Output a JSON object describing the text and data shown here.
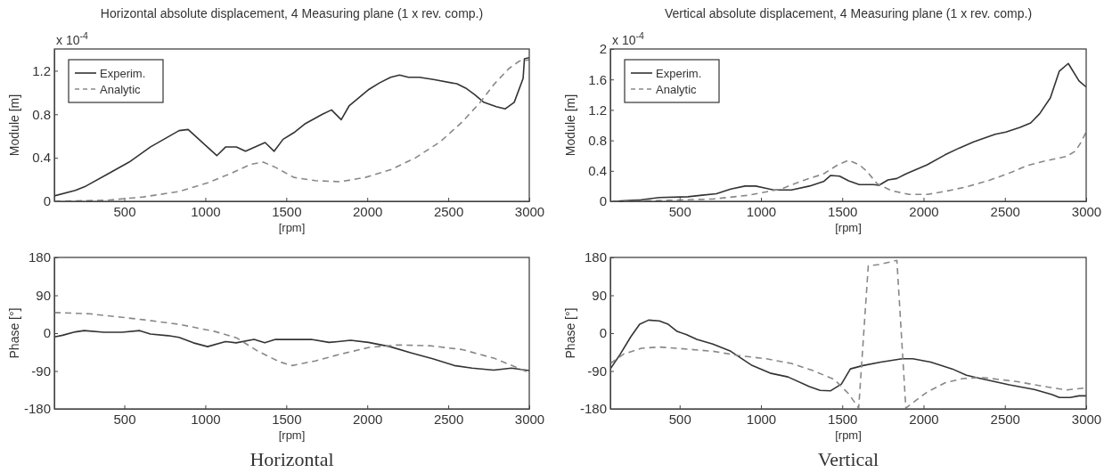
{
  "chart_data": [
    {
      "type": "line",
      "title": "Horizontal absolute displacement, 4 Measuring plane (1 x rev. comp.)",
      "xlabel": "[rpm]",
      "ylabel": "Module [m]",
      "annotations": [
        "x 10$^{-4}$"
      ],
      "xlim": [
        68,
        3000
      ],
      "xticks": [
        500,
        1000,
        1500,
        2000,
        2500,
        3000
      ],
      "ylim": [
        0,
        1.4
      ],
      "yticks": [
        0,
        0.4,
        0.8,
        1.2
      ],
      "legend": "top left",
      "series": [
        {
          "name": "Experim.",
          "color": "#333333",
          "line_style": "solid",
          "x": [
            68,
            197,
            263,
            396,
            529,
            662,
            838,
            894,
            1004,
            1071,
            1126,
            1192,
            1248,
            1369,
            1425,
            1480,
            1546,
            1613,
            1723,
            1779,
            1839,
            1889,
            2011,
            2077,
            2144,
            2199,
            2254,
            2321,
            2409,
            2553,
            2608,
            2664,
            2719,
            2796,
            2852,
            2907,
            2962,
            2970,
            3000
          ],
          "values": [
            0.05,
            0.1,
            0.14,
            0.25,
            0.36,
            0.5,
            0.65,
            0.66,
            0.51,
            0.42,
            0.5,
            0.5,
            0.46,
            0.54,
            0.46,
            0.57,
            0.63,
            0.71,
            0.8,
            0.84,
            0.75,
            0.88,
            1.03,
            1.09,
            1.14,
            1.16,
            1.14,
            1.14,
            1.12,
            1.08,
            1.04,
            0.98,
            0.91,
            0.87,
            0.85,
            0.91,
            1.13,
            1.31,
            1.32
          ]
        },
        {
          "name": "Analytic",
          "color": "#888888",
          "line_style": "dashed",
          "x": [
            68,
            396,
            617,
            838,
            1015,
            1148,
            1281,
            1358,
            1436,
            1546,
            1679,
            1834,
            1989,
            2144,
            2298,
            2453,
            2586,
            2697,
            2785,
            2874,
            2940,
            3000
          ],
          "values": [
            0,
            0.01,
            0.04,
            0.09,
            0.17,
            0.25,
            0.34,
            0.36,
            0.31,
            0.22,
            0.19,
            0.18,
            0.22,
            0.29,
            0.4,
            0.55,
            0.73,
            0.91,
            1.08,
            1.22,
            1.29,
            1.3
          ]
        }
      ]
    },
    {
      "type": "line",
      "title": "Vertical absolute displacement, 4 Measuring plane (1 x rev. comp.)",
      "xlabel": "[rpm]",
      "ylabel": "Module [m]",
      "annotations": [
        "x 10$^{-4}$"
      ],
      "xlim": [
        74,
        3000
      ],
      "xticks": [
        500,
        1000,
        1500,
        2000,
        2500,
        3000
      ],
      "ylim": [
        0,
        2
      ],
      "yticks": [
        0,
        0.4,
        0.8,
        1.2,
        1.6,
        2
      ],
      "legend": "top left",
      "series": [
        {
          "name": "Experim.",
          "color": "#333333",
          "line_style": "solid",
          "x": [
            89,
            265,
            375,
            551,
            638,
            726,
            814,
            902,
            968,
            1034,
            1078,
            1188,
            1298,
            1385,
            1429,
            1484,
            1539,
            1605,
            1693,
            1726,
            1781,
            1836,
            1891,
            2022,
            2132,
            2220,
            2308,
            2440,
            2506,
            2593,
            2659,
            2714,
            2780,
            2835,
            2890,
            2956,
            3000
          ],
          "values": [
            0,
            0.02,
            0.05,
            0.06,
            0.08,
            0.1,
            0.16,
            0.2,
            0.2,
            0.17,
            0.15,
            0.15,
            0.2,
            0.26,
            0.34,
            0.33,
            0.27,
            0.22,
            0.22,
            0.21,
            0.28,
            0.3,
            0.36,
            0.48,
            0.61,
            0.7,
            0.78,
            0.88,
            0.91,
            0.97,
            1.03,
            1.15,
            1.36,
            1.71,
            1.81,
            1.58,
            1.5
          ]
        },
        {
          "name": "Analytic",
          "color": "#888888",
          "line_style": "dashed",
          "x": [
            89,
            375,
            704,
            924,
            1122,
            1254,
            1385,
            1473,
            1539,
            1605,
            1649,
            1715,
            1803,
            1913,
            2022,
            2132,
            2264,
            2396,
            2527,
            2637,
            2747,
            2879,
            2934,
            2967,
            3000
          ],
          "values": [
            0,
            0.01,
            0.03,
            0.08,
            0.16,
            0.27,
            0.36,
            0.48,
            0.54,
            0.48,
            0.4,
            0.23,
            0.14,
            0.09,
            0.09,
            0.13,
            0.19,
            0.27,
            0.37,
            0.47,
            0.53,
            0.59,
            0.66,
            0.77,
            0.91
          ]
        }
      ]
    },
    {
      "type": "line",
      "xlabel": "[rpm]",
      "ylabel": "Phase [°]",
      "annotations": [
        "Horizontal"
      ],
      "xlim": [
        68,
        3000
      ],
      "xticks": [
        500,
        1000,
        1500,
        2000,
        2500,
        3000
      ],
      "ylim": [
        -180,
        180
      ],
      "yticks": [
        -180,
        -90,
        0,
        90,
        180
      ],
      "series": [
        {
          "color": "#333333",
          "line_style": "solid",
          "x": [
            68,
            119,
            197,
            252,
            374,
            485,
            595,
            661,
            771,
            838,
            926,
            1014,
            1124,
            1190,
            1301,
            1367,
            1433,
            1654,
            1764,
            1819,
            1897,
            2007,
            2140,
            2272,
            2404,
            2537,
            2647,
            2780,
            2890,
            3000
          ],
          "values": [
            -9,
            -5,
            3,
            6,
            2,
            2,
            6,
            -2,
            -6,
            -10,
            -23,
            -32,
            -20,
            -23,
            -15,
            -23,
            -15,
            -15,
            -22,
            -20,
            -17,
            -22,
            -32,
            -47,
            -61,
            -77,
            -83,
            -88,
            -83,
            -89
          ]
        },
        {
          "color": "#888888",
          "line_style": "dashed",
          "x": [
            68,
            286,
            617,
            838,
            1059,
            1192,
            1325,
            1458,
            1535,
            1679,
            1834,
            2011,
            2188,
            2387,
            2586,
            2785,
            2918,
            3000
          ],
          "values": [
            49,
            46,
            32,
            21,
            4,
            -11,
            -43,
            -68,
            -77,
            -66,
            -50,
            -34,
            -28,
            -30,
            -39,
            -60,
            -81,
            -94
          ]
        }
      ]
    },
    {
      "type": "line",
      "xlabel": "[rpm]",
      "ylabel": "Phase [°]",
      "annotations": [
        "Vertical"
      ],
      "xlim": [
        74,
        3000
      ],
      "xticks": [
        500,
        1000,
        1500,
        2000,
        2500,
        3000
      ],
      "ylim": [
        -180,
        180
      ],
      "yticks": [
        -180,
        -90,
        0,
        90,
        180
      ],
      "series": [
        {
          "color": "#333333",
          "line_style": "solid",
          "x": [
            74,
            133,
            199,
            254,
            309,
            375,
            430,
            485,
            540,
            606,
            704,
            814,
            946,
            1056,
            1166,
            1298,
            1364,
            1429,
            1495,
            1550,
            1627,
            1737,
            1868,
            1934,
            2044,
            2176,
            2264,
            2352,
            2527,
            2681,
            2791,
            2835,
            2901,
            2956,
            3000
          ],
          "values": [
            -85,
            -51,
            -9,
            21,
            31,
            29,
            21,
            4,
            -3,
            -15,
            -26,
            -43,
            -77,
            -95,
            -104,
            -127,
            -136,
            -137,
            -121,
            -85,
            -77,
            -69,
            -61,
            -61,
            -69,
            -85,
            -100,
            -108,
            -123,
            -134,
            -146,
            -153,
            -153,
            -149,
            -149
          ]
        },
        {
          "color": "#888888",
          "line_style": "dashed",
          "x": [
            74,
            155,
            265,
            375,
            485,
            704,
            858,
            1034,
            1188,
            1320,
            1451,
            1539,
            1601,
            1660,
            1726,
            1836,
            1891,
            2022,
            2132,
            2242,
            2352,
            2571,
            2791,
            2879,
            3000
          ],
          "values": [
            -72,
            -50,
            -36,
            -33,
            -36,
            -43,
            -53,
            -61,
            -72,
            -89,
            -110,
            -144,
            -178,
            160,
            163,
            173,
            -178,
            -140,
            -118,
            -108,
            -105,
            -115,
            -130,
            -135,
            -130
          ]
        }
      ]
    }
  ]
}
